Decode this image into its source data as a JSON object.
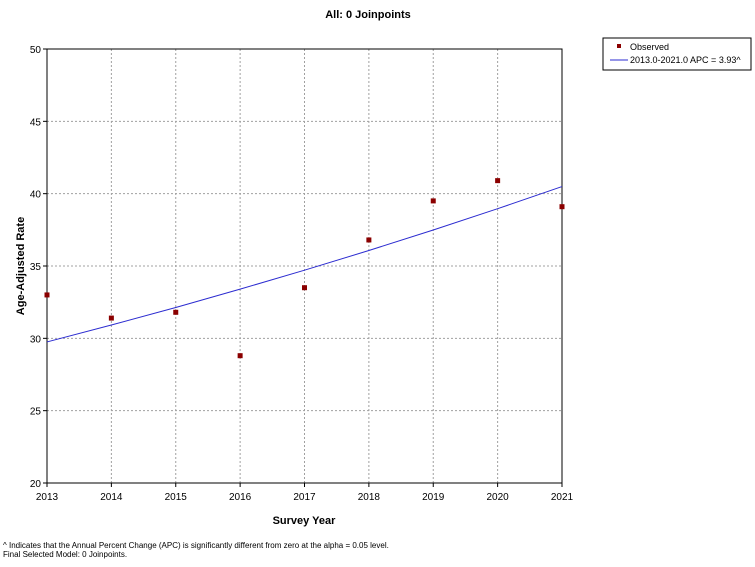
{
  "chart_data": {
    "type": "scatter",
    "title": "All: 0 Joinpoints",
    "xlabel": "Survey Year",
    "ylabel": "Age-Adjusted Rate",
    "xlim": [
      2013,
      2021
    ],
    "ylim": [
      20,
      50
    ],
    "x_ticks": [
      "2013",
      "2014",
      "2015",
      "2016",
      "2017",
      "2018",
      "2019",
      "2020",
      "2021"
    ],
    "y_ticks": [
      "20",
      "25",
      "30",
      "35",
      "40",
      "45",
      "50"
    ],
    "grid": true,
    "legend_position": "top-right",
    "series": [
      {
        "name": "Observed",
        "kind": "points",
        "color": "#8b0000",
        "x": [
          2013,
          2014,
          2015,
          2016,
          2017,
          2018,
          2019,
          2020,
          2021
        ],
        "y": [
          33.0,
          31.4,
          31.8,
          28.8,
          33.5,
          36.8,
          39.5,
          40.9,
          39.1
        ]
      },
      {
        "name": "2013.0-2021.0 APC  = 3.93^",
        "kind": "line",
        "color": "#2b2bd0",
        "x": [
          2013,
          2014,
          2015,
          2016,
          2017,
          2018,
          2019,
          2020,
          2021
        ],
        "y": [
          29.75,
          30.92,
          32.13,
          33.4,
          34.71,
          36.07,
          37.49,
          38.96,
          40.49
        ]
      }
    ]
  },
  "footnotes": {
    "line1": "^ Indicates that the Annual Percent Change (APC) is significantly different from zero at the alpha = 0.05 level.",
    "line2": "Final Selected Model: 0 Joinpoints."
  }
}
